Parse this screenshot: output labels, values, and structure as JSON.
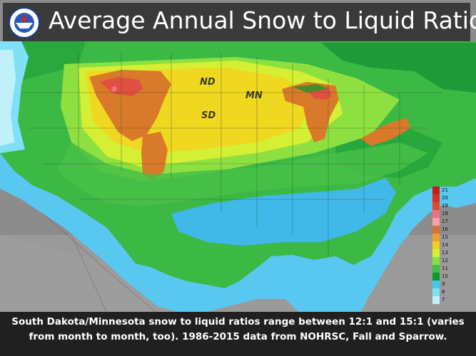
{
  "title": "Average Annual Snow to Liquid Ratio",
  "logo": {
    "icon": "noaa-nws-logo"
  },
  "state_labels": [
    {
      "id": "nd",
      "text": "ND"
    },
    {
      "id": "sd",
      "text": "SD"
    },
    {
      "id": "mn",
      "text": "MN"
    }
  ],
  "legend": {
    "items": [
      {
        "label": "21",
        "color": "#c81818"
      },
      {
        "label": "20",
        "color": "#d83020"
      },
      {
        "label": "19",
        "color": "#e04830"
      },
      {
        "label": "18",
        "color": "#f07080"
      },
      {
        "label": "17",
        "color": "#f8a0a8"
      },
      {
        "label": "16",
        "color": "#d87040"
      },
      {
        "label": "15",
        "color": "#e8a030"
      },
      {
        "label": "14",
        "color": "#f0d020"
      },
      {
        "label": "13",
        "color": "#d8f030"
      },
      {
        "label": "12",
        "color": "#88e040"
      },
      {
        "label": "11",
        "color": "#40c040"
      },
      {
        "label": "10",
        "color": "#109830"
      },
      {
        "label": "9",
        "color": "#40c8f0"
      },
      {
        "label": "8",
        "color": "#80e0f8"
      },
      {
        "label": "7",
        "color": "#c0f0f8"
      }
    ]
  },
  "caption": {
    "line1": "South Dakota/Minnesota snow to liquid ratios range between 12:1 and 15:1 (varies",
    "line2": "from month to month, too). 1986-2015 data from NOHRSC, Fall and Sparrow."
  }
}
